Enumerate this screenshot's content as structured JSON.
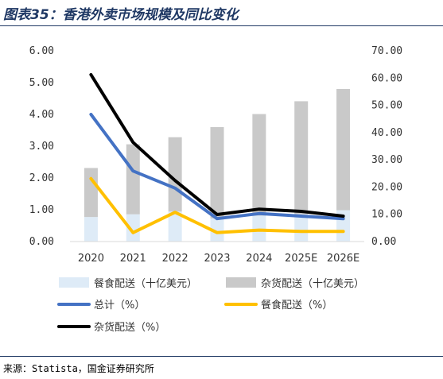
{
  "figure": {
    "title": "图表35：香港外卖市场规模及同比变化",
    "source": "来源：Statista，国金证券研究所"
  },
  "chart_data": {
    "type": "bar",
    "categories": [
      "2020",
      "2021",
      "2022",
      "2023",
      "2024",
      "2025E",
      "2026E"
    ],
    "y_left": {
      "ticks": [
        "0.00",
        "1.00",
        "2.00",
        "3.00",
        "4.00",
        "5.00",
        "6.00"
      ],
      "ylim": [
        0,
        6
      ]
    },
    "y_right": {
      "ticks": [
        "0.00",
        "10.00",
        "20.00",
        "30.00",
        "40.00",
        "50.00",
        "60.00",
        "70.00"
      ],
      "ylim": [
        0,
        70
      ]
    },
    "stacked": true,
    "bar_series": [
      {
        "name": "餐食配送（十亿美元）",
        "axis": "right",
        "color": "#deebf7",
        "values": [
          9.0,
          10.0,
          11.0,
          8.5,
          9.5,
          10.0,
          11.5
        ]
      },
      {
        "name": "杂货配送（十亿美元）",
        "axis": "right",
        "color": "#c9c9c9",
        "values": [
          18.0,
          25.7,
          27.3,
          33.5,
          37.3,
          41.5,
          44.5
        ]
      }
    ],
    "line_series": [
      {
        "name": "总计（%）",
        "axis": "left",
        "color": "#4472c4",
        "values": [
          4.0,
          2.22,
          1.68,
          0.72,
          0.88,
          0.8,
          0.72
        ]
      },
      {
        "name": "餐食配送（%）",
        "axis": "left",
        "color": "#ffc000",
        "values": [
          1.98,
          0.28,
          0.92,
          0.28,
          0.36,
          0.32,
          0.32
        ]
      },
      {
        "name": "杂货配送（%）",
        "axis": "left",
        "color": "#000000",
        "values": [
          5.25,
          3.12,
          1.92,
          0.85,
          1.02,
          0.95,
          0.8
        ]
      }
    ],
    "grid": false,
    "legend": "bottom"
  }
}
